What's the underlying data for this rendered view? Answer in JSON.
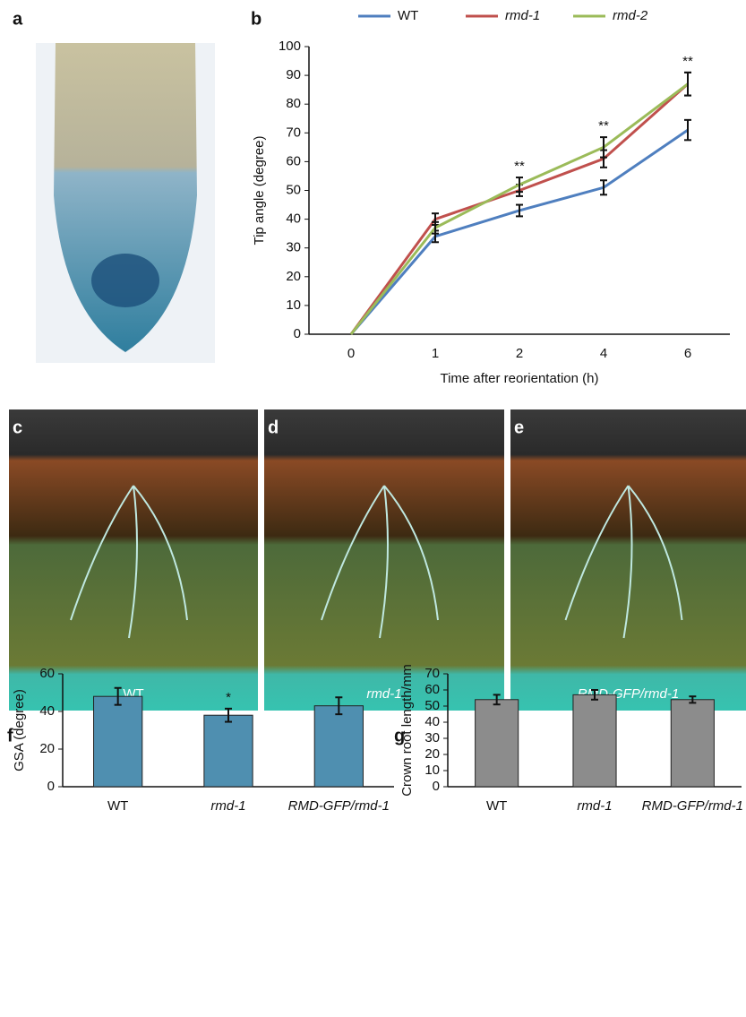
{
  "images": [
    {
      "panel": "a"
    },
    {
      "panel": "c",
      "label": "WT"
    },
    {
      "panel": "d",
      "label": "rmd-1"
    },
    {
      "panel": "e",
      "label": "RMD-GFP/rmd-1"
    }
  ],
  "chart_data": [
    {
      "type": "line",
      "panel": "b",
      "categories": [
        "0",
        "1",
        "2",
        "4",
        "6"
      ],
      "xlabel": "Time after reorientation (h)",
      "ylabel": "Tip angle (degree)",
      "ylim": [
        0,
        100
      ],
      "yticks": [
        0,
        10,
        20,
        30,
        40,
        50,
        60,
        70,
        80,
        90,
        100
      ],
      "legend": "top",
      "series": [
        {
          "name": "WT",
          "color": "#4f7fbf",
          "values": [
            0,
            34,
            43,
            51,
            71
          ],
          "errors": [
            0,
            2,
            2,
            2.5,
            3.5
          ]
        },
        {
          "name": "rmd-1",
          "color": "#c0504d",
          "values": [
            0,
            40,
            50,
            61,
            87
          ],
          "errors": [
            0,
            2,
            2,
            3,
            4
          ]
        },
        {
          "name": "rmd-2",
          "color": "#9bbb59",
          "values": [
            0,
            37,
            52,
            65,
            87
          ],
          "errors": [
            0,
            2,
            2.5,
            3.5,
            4
          ]
        }
      ],
      "annotations": [
        null,
        null,
        "**",
        "**",
        "**"
      ]
    },
    {
      "type": "bar",
      "panel": "f",
      "categories": [
        "WT",
        "rmd-1",
        "RMD-GFP/rmd-1"
      ],
      "ylabel": "GSA (degree)",
      "ylim": [
        0,
        60
      ],
      "yticks": [
        0,
        20,
        40,
        60
      ],
      "color": "#4f8fb0",
      "values": [
        48,
        38,
        43
      ],
      "errors": [
        4.5,
        3.5,
        4.5
      ],
      "annotations": [
        null,
        "*",
        null
      ]
    },
    {
      "type": "bar",
      "panel": "g",
      "categories": [
        "WT",
        "rmd-1",
        "RMD-GFP/rmd-1"
      ],
      "ylabel": "Crown root length/mm",
      "ylim": [
        0,
        70
      ],
      "yticks": [
        0,
        10,
        20,
        30,
        40,
        50,
        60,
        70
      ],
      "color": "#8c8c8c",
      "values": [
        54,
        57,
        54
      ],
      "errors": [
        3,
        3,
        2
      ],
      "annotations": [
        null,
        null,
        null
      ]
    }
  ]
}
